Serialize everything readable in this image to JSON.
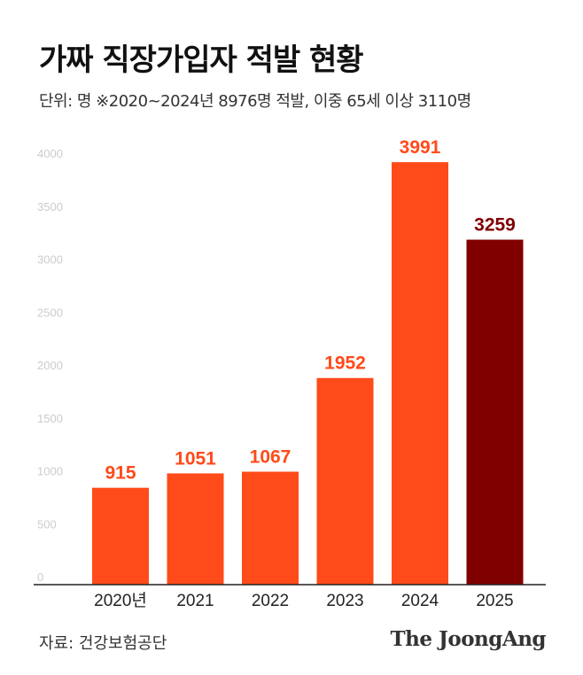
{
  "header": {
    "title": "가짜 직장가입자 적발 현황",
    "subtitle": "단위: 명   ※2020~2024년 8976명 적발, 이중 65세 이상 3110명"
  },
  "footer": {
    "source": "자료: 건강보험공단",
    "brand": "The JoongAng"
  },
  "colors": {
    "bar": "#ff4a1a",
    "bar_highlight": "#800000",
    "label": "#ff4a1a",
    "label_highlight": "#800000",
    "tick": "#cccccc",
    "axis": "#222222"
  },
  "chart_data": {
    "type": "bar",
    "categories": [
      "2020년",
      "2021",
      "2022",
      "2023",
      "2024",
      "2025"
    ],
    "values": [
      915,
      1051,
      1067,
      1952,
      3991,
      3259
    ],
    "data_labels": [
      "915",
      "1051",
      "1067",
      "1952",
      "3991",
      "3259"
    ],
    "highlight_index": 5,
    "yticks": [
      0,
      500,
      1000,
      1500,
      2000,
      2500,
      3000,
      3500,
      4000
    ],
    "ytick_labels": [
      "0",
      "500",
      "1000",
      "1500",
      "2000",
      "2500",
      "3000",
      "3500",
      "4000"
    ],
    "ylim": [
      0,
      4000
    ],
    "grid": false,
    "legend": "none"
  }
}
